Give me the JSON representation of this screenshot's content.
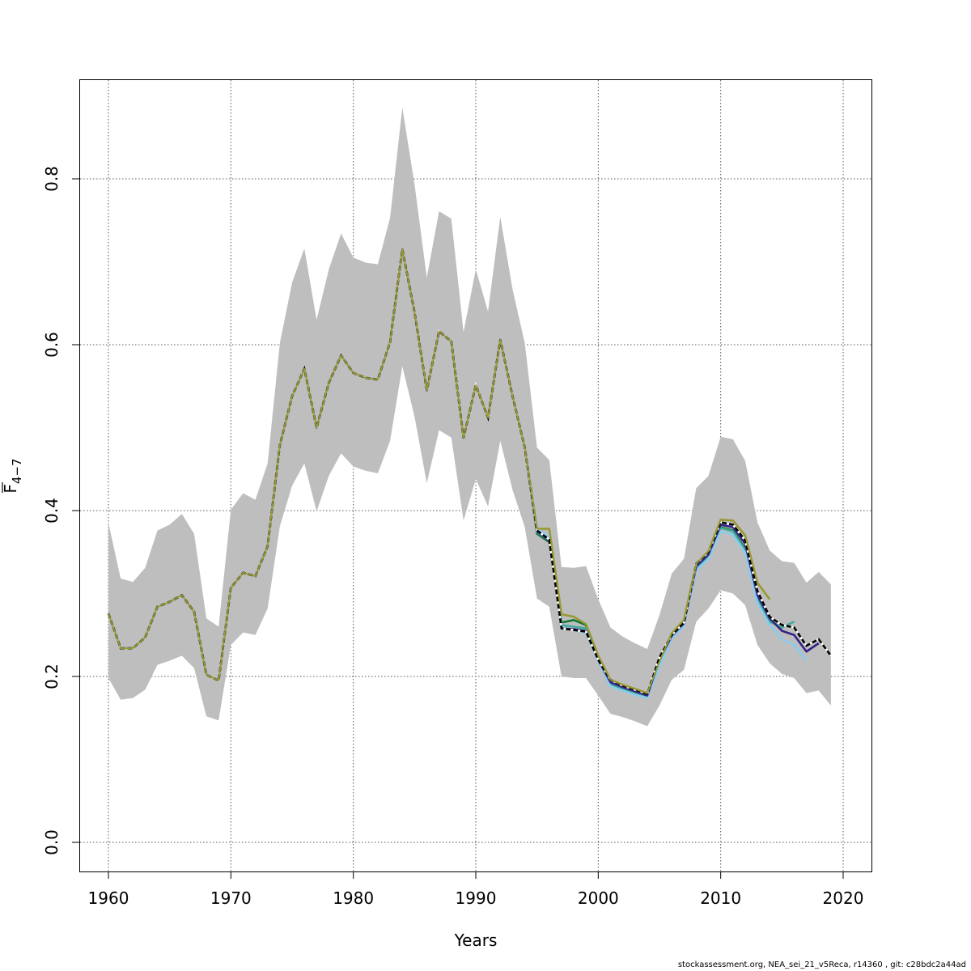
{
  "chart_data": {
    "type": "line",
    "title": "",
    "xlabel": "Years",
    "ylabel": "F",
    "ylabel_subscript": "4−7",
    "xlim": [
      1957.6,
      2022.3
    ],
    "ylim": [
      -0.035,
      0.92
    ],
    "x_ticks": [
      "1960",
      "1970",
      "1980",
      "1990",
      "2000",
      "2010",
      "2020"
    ],
    "y_ticks": [
      "0.0",
      "0.2",
      "0.4",
      "0.6",
      "0.8"
    ],
    "grid": true,
    "start_year": 1960,
    "estimate": [
      0.276,
      0.234,
      0.234,
      0.247,
      0.284,
      0.29,
      0.298,
      0.278,
      0.202,
      0.195,
      0.307,
      0.325,
      0.321,
      0.357,
      0.479,
      0.538,
      0.571,
      0.5,
      0.554,
      0.587,
      0.566,
      0.56,
      0.558,
      0.603,
      0.715,
      0.639,
      0.545,
      0.616,
      0.604,
      0.488,
      0.551,
      0.512,
      0.606,
      0.538,
      0.476,
      0.376,
      0.365,
      0.258,
      0.256,
      0.254,
      0.22,
      0.196,
      0.189,
      0.184,
      0.179,
      0.223,
      0.25,
      0.265,
      0.336,
      0.35,
      0.386,
      0.383,
      0.364,
      0.303,
      0.272,
      0.262,
      0.259,
      0.237,
      0.245,
      0.225
    ],
    "upper": [
      0.385,
      0.318,
      0.314,
      0.331,
      0.376,
      0.383,
      0.396,
      0.372,
      0.27,
      0.26,
      0.401,
      0.421,
      0.413,
      0.457,
      0.602,
      0.675,
      0.716,
      0.63,
      0.691,
      0.734,
      0.705,
      0.699,
      0.697,
      0.753,
      0.886,
      0.793,
      0.681,
      0.761,
      0.752,
      0.615,
      0.691,
      0.64,
      0.754,
      0.667,
      0.602,
      0.476,
      0.461,
      0.332,
      0.331,
      0.333,
      0.293,
      0.259,
      0.248,
      0.24,
      0.233,
      0.274,
      0.324,
      0.342,
      0.427,
      0.442,
      0.489,
      0.486,
      0.46,
      0.386,
      0.352,
      0.339,
      0.337,
      0.313,
      0.326,
      0.311
    ],
    "lower": [
      0.198,
      0.172,
      0.174,
      0.184,
      0.214,
      0.219,
      0.225,
      0.21,
      0.152,
      0.147,
      0.238,
      0.253,
      0.25,
      0.282,
      0.381,
      0.43,
      0.457,
      0.399,
      0.442,
      0.469,
      0.453,
      0.448,
      0.445,
      0.484,
      0.574,
      0.513,
      0.433,
      0.497,
      0.488,
      0.388,
      0.438,
      0.405,
      0.484,
      0.425,
      0.38,
      0.294,
      0.284,
      0.2,
      0.198,
      0.198,
      0.177,
      0.155,
      0.151,
      0.146,
      0.14,
      0.165,
      0.196,
      0.208,
      0.266,
      0.282,
      0.304,
      0.3,
      0.286,
      0.238,
      0.216,
      0.203,
      0.198,
      0.18,
      0.183,
      0.165
    ],
    "estimate_color": "#000000",
    "band_color": "#bebebe",
    "retro_start_year": 1995,
    "retro_series": [
      {
        "end": 2014,
        "color": "#999933",
        "values": [
          0.378,
          0.378,
          0.275,
          0.272,
          0.263,
          0.225,
          0.196,
          0.19,
          0.185,
          0.18,
          0.218,
          0.252,
          0.268,
          0.336,
          0.351,
          0.389,
          0.388,
          0.37,
          0.313,
          0.293
        ]
      },
      {
        "end": 2015,
        "color": "#117733",
        "values": [
          0.372,
          0.362,
          0.265,
          0.268,
          0.262,
          0.222,
          0.192,
          0.186,
          0.181,
          0.177,
          0.215,
          0.249,
          0.264,
          0.332,
          0.346,
          0.38,
          0.376,
          0.354,
          0.295,
          0.268,
          0.258
        ]
      },
      {
        "end": 2016,
        "color": "#44AA99",
        "values": [
          0.374,
          0.364,
          0.262,
          0.26,
          0.258,
          0.221,
          0.191,
          0.185,
          0.18,
          0.176,
          0.214,
          0.248,
          0.263,
          0.331,
          0.345,
          0.379,
          0.375,
          0.352,
          0.293,
          0.266,
          0.259,
          0.266
        ]
      },
      {
        "end": 2017,
        "color": "#88CCEE",
        "values": [
          0.378,
          0.368,
          0.26,
          0.256,
          0.253,
          0.218,
          0.188,
          0.183,
          0.178,
          0.174,
          0.212,
          0.246,
          0.261,
          0.328,
          0.342,
          0.375,
          0.371,
          0.349,
          0.289,
          0.262,
          0.245,
          0.238,
          0.219
        ]
      },
      {
        "end": 2018,
        "color": "#332288",
        "values": [
          0.375,
          0.364,
          0.258,
          0.257,
          0.255,
          0.22,
          0.193,
          0.187,
          0.182,
          0.177,
          0.22,
          0.249,
          0.264,
          0.333,
          0.347,
          0.383,
          0.38,
          0.36,
          0.298,
          0.27,
          0.255,
          0.25,
          0.23,
          0.24
        ]
      }
    ]
  },
  "footer": "stockassessment.org, NEA_sei_21_v5Reca, r14360 , git: c28bdc2a44ad"
}
